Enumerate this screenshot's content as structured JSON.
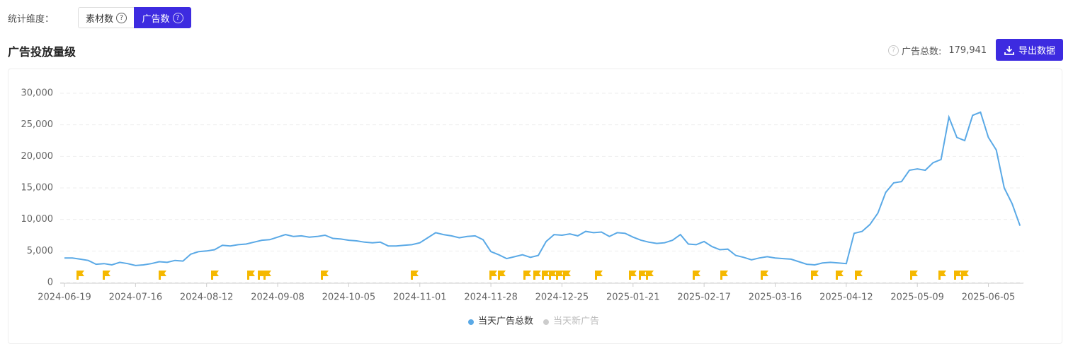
{
  "header": {
    "dimension_label": "统计维度：",
    "options": [
      "素材数",
      "广告数"
    ],
    "title": "广告投放量级",
    "total_label": "广告总数:",
    "total_value": {
      "value": 179941,
      "label": "179,941"
    },
    "export_button": "导出数据"
  },
  "chart_data": {
    "type": "line",
    "categories": [
      "2024-06-19",
      null,
      null,
      null,
      null,
      null,
      null,
      null,
      null,
      "2024-07-16",
      null,
      null,
      null,
      null,
      null,
      null,
      null,
      null,
      "2024-08-12",
      null,
      null,
      null,
      null,
      null,
      null,
      null,
      null,
      "2024-09-08",
      null,
      null,
      null,
      null,
      null,
      null,
      null,
      null,
      "2024-10-05",
      null,
      null,
      null,
      null,
      null,
      null,
      null,
      null,
      "2024-11-01",
      null,
      null,
      null,
      null,
      null,
      null,
      null,
      null,
      "2024-11-28",
      null,
      null,
      null,
      null,
      null,
      null,
      null,
      null,
      "2024-12-25",
      null,
      null,
      null,
      null,
      null,
      null,
      null,
      null,
      "2025-01-21",
      null,
      null,
      null,
      null,
      null,
      null,
      null,
      null,
      "2025-02-17",
      null,
      null,
      null,
      null,
      null,
      null,
      null,
      null,
      "2025-03-16",
      null,
      null,
      null,
      null,
      null,
      null,
      null,
      null,
      "2025-04-12",
      null,
      null,
      null,
      null,
      null,
      null,
      null,
      null,
      "2025-05-09",
      null,
      null,
      null,
      null,
      null,
      null,
      null,
      null,
      "2025-06-05",
      null,
      null,
      null,
      null
    ],
    "series": [
      {
        "name": "当天广告总数",
        "color": "#5aa9e6",
        "values": [
          3900,
          3900,
          3700,
          3500,
          2900,
          3000,
          2800,
          3200,
          3000,
          2700,
          2800,
          3000,
          3300,
          3200,
          3500,
          3400,
          4500,
          4900,
          5000,
          5200,
          5900,
          5800,
          6000,
          6100,
          6400,
          6700,
          6800,
          7200,
          7600,
          7300,
          7400,
          7200,
          7300,
          7500,
          7000,
          6900,
          6700,
          6600,
          6400,
          6300,
          6400,
          5800,
          5800,
          5900,
          6000,
          6300,
          7100,
          7900,
          7600,
          7400,
          7100,
          7300,
          7400,
          6800,
          4900,
          4400,
          3800,
          4100,
          4400,
          4000,
          4300,
          6500,
          7600,
          7500,
          7700,
          7400,
          8100,
          7900,
          8000,
          7300,
          7900,
          7800,
          7200,
          6700,
          6400,
          6200,
          6300,
          6700,
          7600,
          6100,
          6000,
          6500,
          5700,
          5200,
          5300,
          4300,
          4000,
          3600,
          3900,
          4100,
          3900,
          3800,
          3700,
          3300,
          2900,
          2800,
          3100,
          3200,
          3100,
          3000,
          7800,
          8100,
          9200,
          11000,
          14300,
          15800,
          16000,
          17800,
          18000,
          17800,
          19000,
          19500,
          26200,
          23000,
          22500,
          26500,
          27000,
          23000,
          21000,
          15000,
          12500,
          9000
        ]
      }
    ],
    "legend_inactive": {
      "name": "当天新广告",
      "color": "#ccc"
    },
    "ylim": [
      0,
      30000
    ],
    "yticks": [
      0,
      {
        "value": 5000,
        "label": "5,000"
      },
      {
        "value": 10000,
        "label": "10,000"
      },
      {
        "value": 15000,
        "label": "15,000"
      },
      {
        "value": 20000,
        "label": "20,000"
      },
      {
        "value": 25000,
        "label": "25,000"
      },
      {
        "value": 30000,
        "label": "30,000"
      }
    ],
    "grid": true
  }
}
